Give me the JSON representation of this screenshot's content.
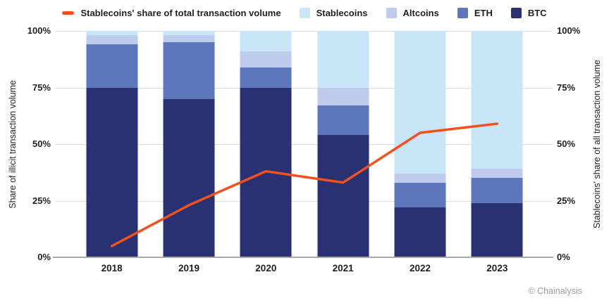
{
  "chart_data": {
    "type": "bar",
    "subtype": "stacked-percent-with-line-overlay",
    "categories": [
      "2018",
      "2019",
      "2020",
      "2021",
      "2022",
      "2023"
    ],
    "series": [
      {
        "name": "BTC",
        "color": "#2A3172",
        "values": [
          75,
          70,
          75,
          54,
          22,
          24
        ]
      },
      {
        "name": "ETH",
        "color": "#5E76BC",
        "values": [
          19,
          25,
          9,
          13,
          11,
          11
        ]
      },
      {
        "name": "Altcoins",
        "color": "#BFCBEC",
        "values": [
          4,
          3,
          7,
          8,
          4,
          4
        ]
      },
      {
        "name": "Stablecoins",
        "color": "#C8E6F7",
        "values": [
          2,
          2,
          9,
          25,
          63,
          61
        ]
      }
    ],
    "line": {
      "name": "Stablecoins' share of total transaction volume",
      "color": "#F1511E",
      "values": [
        5,
        23,
        38,
        33,
        55,
        59
      ]
    },
    "ylabel_left": "Share of illicit transaction volume",
    "ylabel_right": "Stablecoins' share of all transaction volume",
    "yticks": [
      "0%",
      "25%",
      "50%",
      "75%",
      "100%"
    ],
    "ylim": [
      0,
      100
    ],
    "grid": true,
    "legend_position": "top"
  },
  "attribution": "© Chainalysis",
  "colors": {
    "grid": "#DCDCDC",
    "axis": "#A9A9A9",
    "text": "#1F1F1F",
    "muted": "#9B9B9B"
  }
}
